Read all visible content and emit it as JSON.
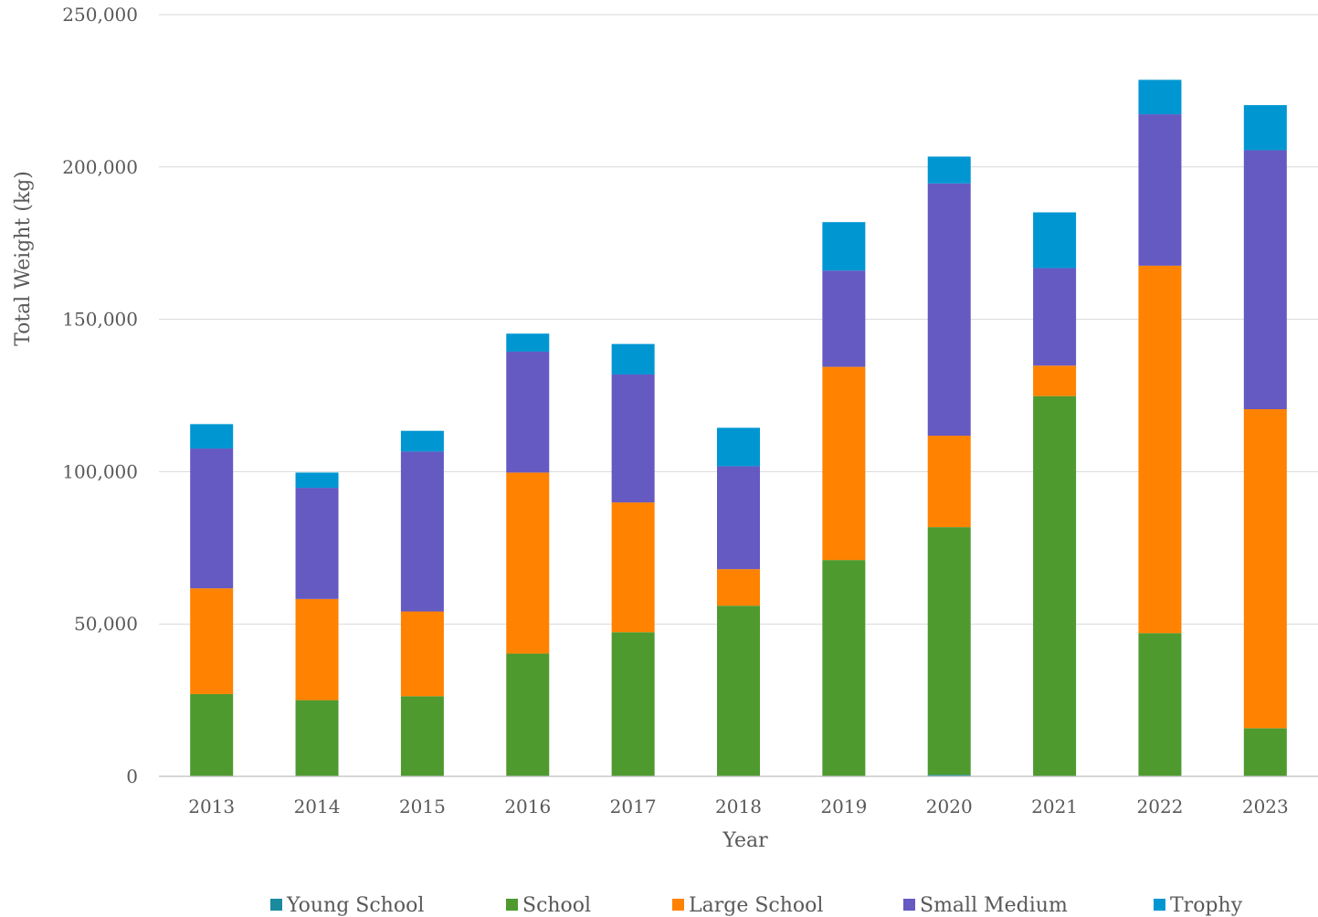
{
  "chart_data": {
    "type": "bar",
    "stacked": true,
    "title": "",
    "xlabel": "Year",
    "ylabel": "Total Weight (kg)",
    "ylim": [
      0,
      250000
    ],
    "yticks": [
      0,
      50000,
      100000,
      150000,
      200000,
      250000
    ],
    "ytick_labels": [
      "0",
      "50,000",
      "100,000",
      "150,000",
      "200,000",
      "250,000"
    ],
    "grid": "horizontal",
    "legend_position": "bottom",
    "categories": [
      "2013",
      "2014",
      "2015",
      "2016",
      "2017",
      "2018",
      "2019",
      "2020",
      "2021",
      "2022",
      "2023"
    ],
    "series": [
      {
        "name": "Young School",
        "color": "#1a8a9e",
        "values": [
          0,
          0,
          0,
          0,
          0,
          0,
          0,
          500,
          0,
          0,
          0
        ]
      },
      {
        "name": "School",
        "color": "#4e9a2f",
        "values": [
          27000,
          25000,
          26300,
          40300,
          47300,
          56000,
          71000,
          81300,
          124800,
          47000,
          15800
        ]
      },
      {
        "name": "Large School",
        "color": "#ff8200",
        "values": [
          34700,
          33200,
          27800,
          59400,
          42600,
          12000,
          63400,
          30000,
          10000,
          120600,
          104700
        ]
      },
      {
        "name": "Small Medium",
        "color": "#6559c2",
        "values": [
          45900,
          36500,
          52500,
          39700,
          42000,
          33800,
          31600,
          82800,
          32000,
          49700,
          85000
        ]
      },
      {
        "name": "Trophy",
        "color": "#0096d2",
        "values": [
          8000,
          5000,
          6800,
          5900,
          10000,
          12600,
          15900,
          8800,
          18300,
          11300,
          14800
        ]
      }
    ]
  }
}
